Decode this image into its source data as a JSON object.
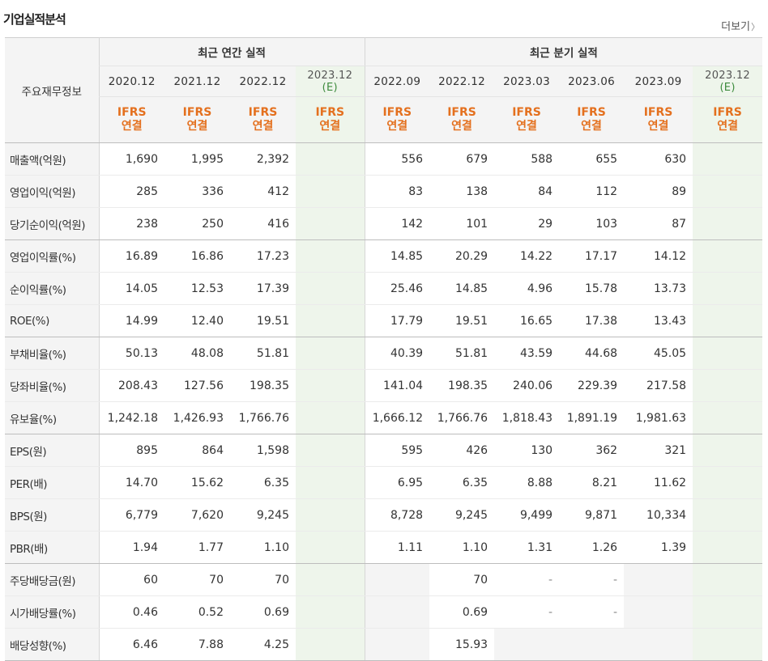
{
  "section_title": "기업실적분석",
  "more_link": "더보기",
  "row_header_label": "주요재무정보",
  "groups": {
    "annual": "최근 연간 실적",
    "quarterly": "최근 분기 실적"
  },
  "annual_periods": [
    "2020.12",
    "2021.12",
    "2022.12"
  ],
  "annual_estimate": {
    "period": "2023.12",
    "mark": "(E)"
  },
  "quarter_periods": [
    "2022.09",
    "2022.12",
    "2023.03",
    "2023.06",
    "2023.09"
  ],
  "quarter_estimate": {
    "period": "2023.12",
    "mark": "(E)"
  },
  "ifrs_label": {
    "line1": "IFRS",
    "line2": "연결"
  },
  "rows": [
    {
      "label": "매출액(억원)",
      "annual": [
        "1,690",
        "1,995",
        "2,392"
      ],
      "annual_est": "",
      "quarter": [
        "556",
        "679",
        "588",
        "655",
        "630"
      ],
      "quarter_est": ""
    },
    {
      "label": "영업이익(억원)",
      "annual": [
        "285",
        "336",
        "412"
      ],
      "annual_est": "",
      "quarter": [
        "83",
        "138",
        "84",
        "112",
        "89"
      ],
      "quarter_est": ""
    },
    {
      "label": "당기순이익(억원)",
      "annual": [
        "238",
        "250",
        "416"
      ],
      "annual_est": "",
      "quarter": [
        "142",
        "101",
        "29",
        "103",
        "87"
      ],
      "quarter_est": ""
    },
    {
      "label": "영업이익률(%)",
      "annual": [
        "16.89",
        "16.86",
        "17.23"
      ],
      "annual_est": "",
      "quarter": [
        "14.85",
        "20.29",
        "14.22",
        "17.17",
        "14.12"
      ],
      "quarter_est": ""
    },
    {
      "label": "순이익률(%)",
      "annual": [
        "14.05",
        "12.53",
        "17.39"
      ],
      "annual_est": "",
      "quarter": [
        "25.46",
        "14.85",
        "4.96",
        "15.78",
        "13.73"
      ],
      "quarter_est": ""
    },
    {
      "label": "ROE(%)",
      "annual": [
        "14.99",
        "12.40",
        "19.51"
      ],
      "annual_est": "",
      "quarter": [
        "17.79",
        "19.51",
        "16.65",
        "17.38",
        "13.43"
      ],
      "quarter_est": ""
    },
    {
      "label": "부채비율(%)",
      "annual": [
        "50.13",
        "48.08",
        "51.81"
      ],
      "annual_est": "",
      "quarter": [
        "40.39",
        "51.81",
        "43.59",
        "44.68",
        "45.05"
      ],
      "quarter_est": ""
    },
    {
      "label": "당좌비율(%)",
      "annual": [
        "208.43",
        "127.56",
        "198.35"
      ],
      "annual_est": "",
      "quarter": [
        "141.04",
        "198.35",
        "240.06",
        "229.39",
        "217.58"
      ],
      "quarter_est": ""
    },
    {
      "label": "유보율(%)",
      "annual": [
        "1,242.18",
        "1,426.93",
        "1,766.76"
      ],
      "annual_est": "",
      "quarter": [
        "1,666.12",
        "1,766.76",
        "1,818.43",
        "1,891.19",
        "1,981.63"
      ],
      "quarter_est": ""
    },
    {
      "label": "EPS(원)",
      "annual": [
        "895",
        "864",
        "1,598"
      ],
      "annual_est": "",
      "quarter": [
        "595",
        "426",
        "130",
        "362",
        "321"
      ],
      "quarter_est": ""
    },
    {
      "label": "PER(배)",
      "annual": [
        "14.70",
        "15.62",
        "6.35"
      ],
      "annual_est": "",
      "quarter": [
        "6.95",
        "6.35",
        "8.88",
        "8.21",
        "11.62"
      ],
      "quarter_est": ""
    },
    {
      "label": "BPS(원)",
      "annual": [
        "6,779",
        "7,620",
        "9,245"
      ],
      "annual_est": "",
      "quarter": [
        "8,728",
        "9,245",
        "9,499",
        "9,871",
        "10,334"
      ],
      "quarter_est": ""
    },
    {
      "label": "PBR(배)",
      "annual": [
        "1.94",
        "1.77",
        "1.10"
      ],
      "annual_est": "",
      "quarter": [
        "1.11",
        "1.10",
        "1.31",
        "1.26",
        "1.39"
      ],
      "quarter_est": ""
    },
    {
      "label": "주당배당금(원)",
      "annual": [
        "60",
        "70",
        "70"
      ],
      "annual_est": "",
      "quarter": [
        "",
        "70",
        "-",
        "-",
        ""
      ],
      "quarter_est": ""
    },
    {
      "label": "시가배당률(%)",
      "annual": [
        "0.46",
        "0.52",
        "0.69"
      ],
      "annual_est": "",
      "quarter": [
        "",
        "0.69",
        "-",
        "-",
        ""
      ],
      "quarter_est": ""
    },
    {
      "label": "배당성향(%)",
      "annual": [
        "6.46",
        "7.88",
        "4.25"
      ],
      "annual_est": "",
      "quarter": [
        "",
        "15.93",
        "",
        "",
        ""
      ],
      "quarter_est": ""
    }
  ]
}
